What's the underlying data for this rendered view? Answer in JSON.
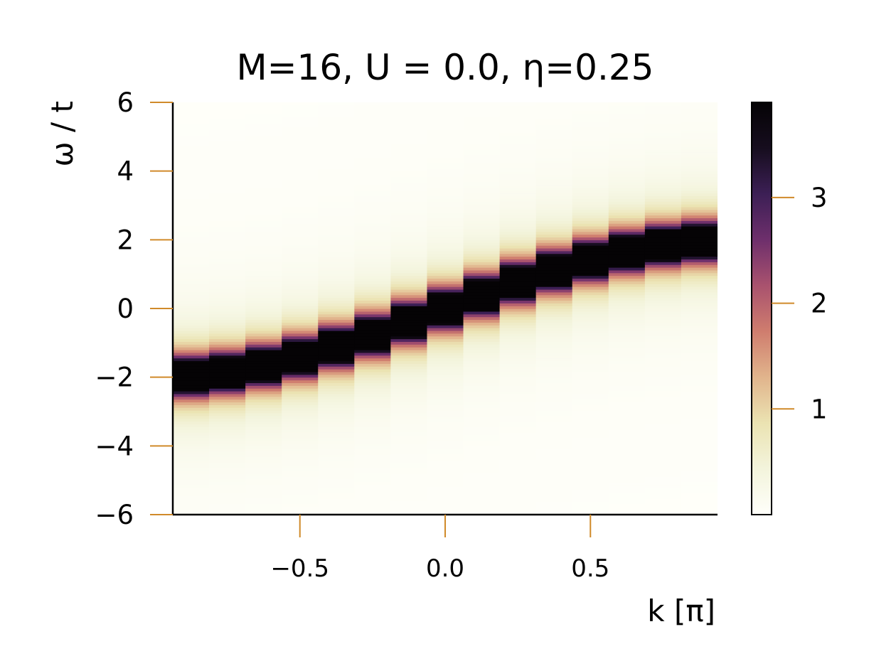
{
  "chart_data": {
    "type": "heatmap",
    "title": "M=16, U = 0.0, η=0.25",
    "xlabel": "k [π]",
    "ylabel": "ω / t",
    "xlim": [
      -0.9375,
      0.9375
    ],
    "ylim": [
      -6,
      6
    ],
    "x_ticks": [
      {
        "value": -0.5,
        "label": "−0.5"
      },
      {
        "value": 0.0,
        "label": "0.0"
      },
      {
        "value": 0.5,
        "label": "0.5"
      }
    ],
    "y_ticks": [
      {
        "value": 6,
        "label": "6"
      },
      {
        "value": 4,
        "label": "4"
      },
      {
        "value": 2,
        "label": "2"
      },
      {
        "value": 0,
        "label": "0"
      },
      {
        "value": -2,
        "label": "−2"
      },
      {
        "value": -4,
        "label": "−4"
      },
      {
        "value": -6,
        "label": "−6"
      }
    ],
    "k_centers": [
      -0.875,
      -0.75,
      -0.625,
      -0.5,
      -0.375,
      -0.25,
      -0.125,
      0.0,
      0.125,
      0.25,
      0.375,
      0.5,
      0.625,
      0.75,
      0.875
    ],
    "peak_omega": [
      -1.96,
      -1.85,
      -1.66,
      -1.41,
      -1.11,
      -0.77,
      -0.39,
      0.0,
      0.39,
      0.77,
      1.11,
      1.41,
      1.66,
      1.85,
      1.96
    ],
    "eta": 0.25,
    "colorbar": {
      "range": [
        0.0,
        3.9
      ],
      "ticks": [
        {
          "value": 1,
          "label": "1"
        },
        {
          "value": 2,
          "label": "2"
        },
        {
          "value": 3,
          "label": "3"
        }
      ],
      "colormap": "cmr.torch_r",
      "stops": [
        "#fffffa",
        "#f3f4dc",
        "#ebe3b2",
        "#e1b48c",
        "#cf7d6e",
        "#a9526e",
        "#6e2f6c",
        "#3c1f55",
        "#160d1e",
        "#050305"
      ]
    },
    "grid": false,
    "tick_color": "#d08a2a"
  }
}
